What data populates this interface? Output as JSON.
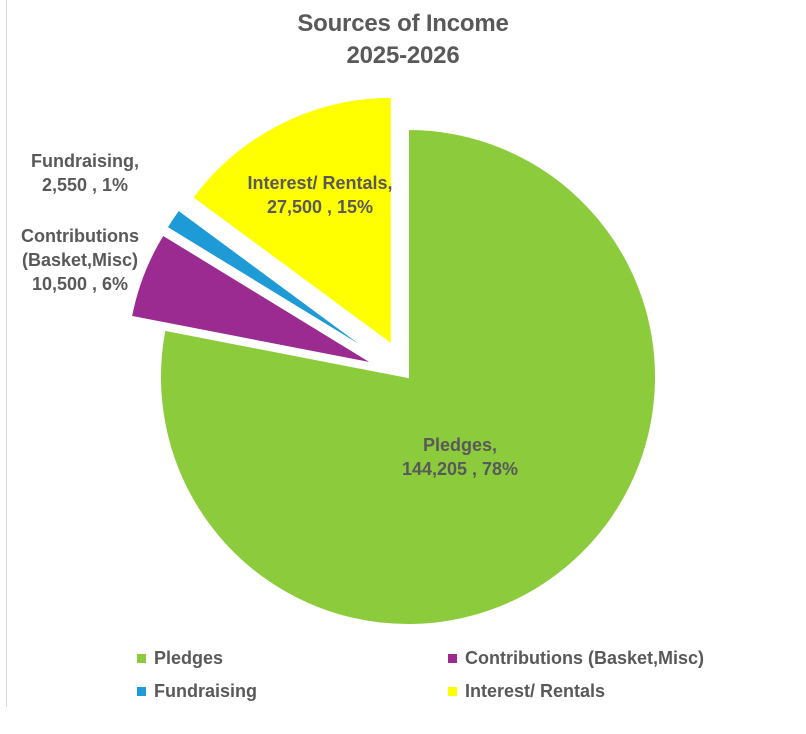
{
  "chart_data": {
    "type": "pie",
    "title": "Sources of Income",
    "subtitle": "2025-2026",
    "categories": [
      "Pledges",
      "Contributions (Basket,Misc)",
      "Fundraising",
      "Interest/ Rentals"
    ],
    "values": [
      144205,
      10500,
      2550,
      27500
    ],
    "percent_labels": [
      "78%",
      "6%",
      "1%",
      "15%"
    ],
    "colors": [
      "#8ccb3c",
      "#9b2a91",
      "#1e9bd7",
      "#ffff00"
    ],
    "exploded": [
      false,
      true,
      true,
      true
    ],
    "data_labels": [
      {
        "lines": [
          "Pledges,",
          "144,205 , 78%"
        ]
      },
      {
        "lines": [
          "Contributions",
          "(Basket,Misc)",
          "10,500 , 6%"
        ]
      },
      {
        "lines": [
          "Fundraising,",
          "2,550 , 1%"
        ]
      },
      {
        "lines": [
          "Interest/ Rentals,",
          "27,500 , 15%"
        ]
      }
    ],
    "legend": {
      "position": "bottom",
      "items": [
        {
          "label": "Pledges",
          "color": "#8ccb3c"
        },
        {
          "label": "Contributions (Basket,Misc)",
          "color": "#9b2a91"
        },
        {
          "label": "Fundraising",
          "color": "#1e9bd7"
        },
        {
          "label": "Interest/ Rentals",
          "color": "#ffff00"
        }
      ]
    }
  }
}
